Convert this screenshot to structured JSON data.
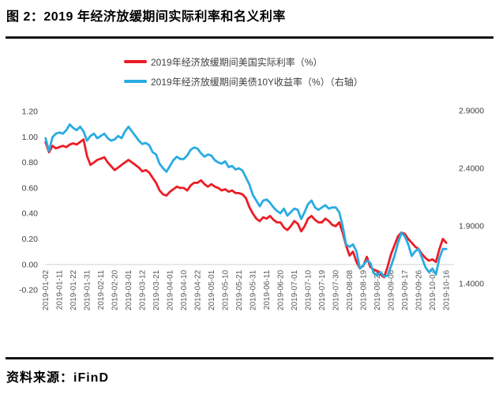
{
  "figure": {
    "title": "图 2：2019 年经济放缓期间实际利率和名义利率",
    "source_label": "资料来源：iFinD"
  },
  "colors": {
    "real_rate_line": "#ed1c24",
    "nominal_10y_line": "#29abe2",
    "zero_grid_line": "#d9d9d9",
    "y_axis_text": "#404040",
    "x_axis_text": "#595959",
    "divider": "#141414"
  },
  "chart_data": {
    "type": "line",
    "title": "",
    "legend_position": "top-center",
    "grid": "horizontal line at left-axis 0.00 only",
    "x_labels": [
      "2019-01-02",
      "2019-01-11",
      "2019-01-22",
      "2019-01-31",
      "2019-02-11",
      "2019-02-20",
      "2019-03-01",
      "2019-03-12",
      "2019-03-21",
      "2019-04-01",
      "2019-04-10",
      "2019-04-22",
      "2019-05-01",
      "2019-05-10",
      "2019-05-21",
      "2019-05-31",
      "2019-06-11",
      "2019-06-20",
      "2019-07-01",
      "2019-07-10",
      "2019-07-19",
      "2019-07-30",
      "2019-08-08",
      "2019-08-19",
      "2019-08-28",
      "2019-09-06",
      "2019-09-17",
      "2019-09-26",
      "2019-10-07",
      "2019-10-16"
    ],
    "left_axis": {
      "ticks": [
        "1.20",
        "1.00",
        "0.80",
        "0.60",
        "0.40",
        "0.20",
        "0.00",
        "-0.20"
      ],
      "tick_values": [
        1.2,
        1.0,
        0.8,
        0.6,
        0.4,
        0.2,
        0.0,
        -0.2
      ],
      "min": -0.2,
      "max": 1.2
    },
    "right_axis": {
      "ticks": [
        "2.9000",
        "2.4000",
        "1.9000",
        "1.4000"
      ],
      "tick_values": [
        2.9,
        2.4,
        1.9,
        1.4
      ],
      "max": 2.9
    },
    "points_per_label_interval": 4,
    "series": [
      {
        "key": "real-rate",
        "name": "2019年经济放缓期间美国实际利率（%）",
        "axis": "left",
        "color": "#ed1c24",
        "values": [
          0.96,
          0.88,
          0.93,
          0.91,
          0.92,
          0.93,
          0.92,
          0.94,
          0.95,
          0.94,
          0.96,
          0.98,
          0.85,
          0.78,
          0.8,
          0.82,
          0.83,
          0.84,
          0.8,
          0.77,
          0.74,
          0.76,
          0.78,
          0.8,
          0.82,
          0.8,
          0.78,
          0.76,
          0.73,
          0.74,
          0.72,
          0.68,
          0.64,
          0.58,
          0.55,
          0.54,
          0.57,
          0.59,
          0.61,
          0.6,
          0.6,
          0.58,
          0.62,
          0.64,
          0.64,
          0.66,
          0.63,
          0.61,
          0.63,
          0.61,
          0.6,
          0.58,
          0.59,
          0.57,
          0.58,
          0.56,
          0.56,
          0.55,
          0.52,
          0.45,
          0.4,
          0.36,
          0.34,
          0.37,
          0.36,
          0.38,
          0.35,
          0.33,
          0.33,
          0.29,
          0.27,
          0.3,
          0.34,
          0.32,
          0.26,
          0.3,
          0.36,
          0.38,
          0.35,
          0.33,
          0.33,
          0.36,
          0.34,
          0.31,
          0.3,
          0.33,
          0.25,
          0.15,
          0.07,
          0.1,
          0.02,
          -0.03,
          -0.01,
          0.06,
          -0.02,
          -0.04,
          -0.05,
          -0.08,
          -0.1,
          -0.02,
          0.08,
          0.15,
          0.22,
          0.25,
          0.24,
          0.2,
          0.17,
          0.14,
          0.12,
          0.08,
          0.05,
          0.03,
          0.04,
          0.02,
          0.12,
          0.2,
          0.17
        ]
      },
      {
        "key": "nominal-10y",
        "name": "2019年经济放缓期间美债10Y收益率（%）（右轴）",
        "axis": "right",
        "color": "#29abe2",
        "values": [
          2.66,
          2.55,
          2.67,
          2.7,
          2.71,
          2.7,
          2.73,
          2.78,
          2.75,
          2.73,
          2.76,
          2.72,
          2.64,
          2.68,
          2.7,
          2.66,
          2.68,
          2.7,
          2.66,
          2.64,
          2.65,
          2.68,
          2.66,
          2.72,
          2.76,
          2.72,
          2.68,
          2.64,
          2.61,
          2.62,
          2.6,
          2.54,
          2.52,
          2.44,
          2.4,
          2.37,
          2.42,
          2.47,
          2.5,
          2.48,
          2.48,
          2.51,
          2.56,
          2.58,
          2.57,
          2.53,
          2.5,
          2.52,
          2.51,
          2.47,
          2.45,
          2.44,
          2.46,
          2.41,
          2.42,
          2.39,
          2.4,
          2.38,
          2.32,
          2.26,
          2.17,
          2.12,
          2.07,
          2.12,
          2.13,
          2.1,
          2.06,
          2.03,
          2.01,
          2.05,
          1.99,
          2.02,
          2.05,
          2.04,
          1.96,
          2.02,
          2.09,
          2.12,
          2.06,
          2.04,
          2.06,
          2.08,
          2.05,
          2.06,
          2.06,
          2.02,
          1.9,
          1.74,
          1.72,
          1.74,
          1.68,
          1.53,
          1.56,
          1.6,
          1.58,
          1.49,
          1.47,
          1.5,
          1.46,
          1.47,
          1.55,
          1.64,
          1.75,
          1.84,
          1.81,
          1.74,
          1.64,
          1.68,
          1.7,
          1.62,
          1.54,
          1.5,
          1.53,
          1.48,
          1.62,
          1.7,
          1.7
        ]
      }
    ]
  }
}
